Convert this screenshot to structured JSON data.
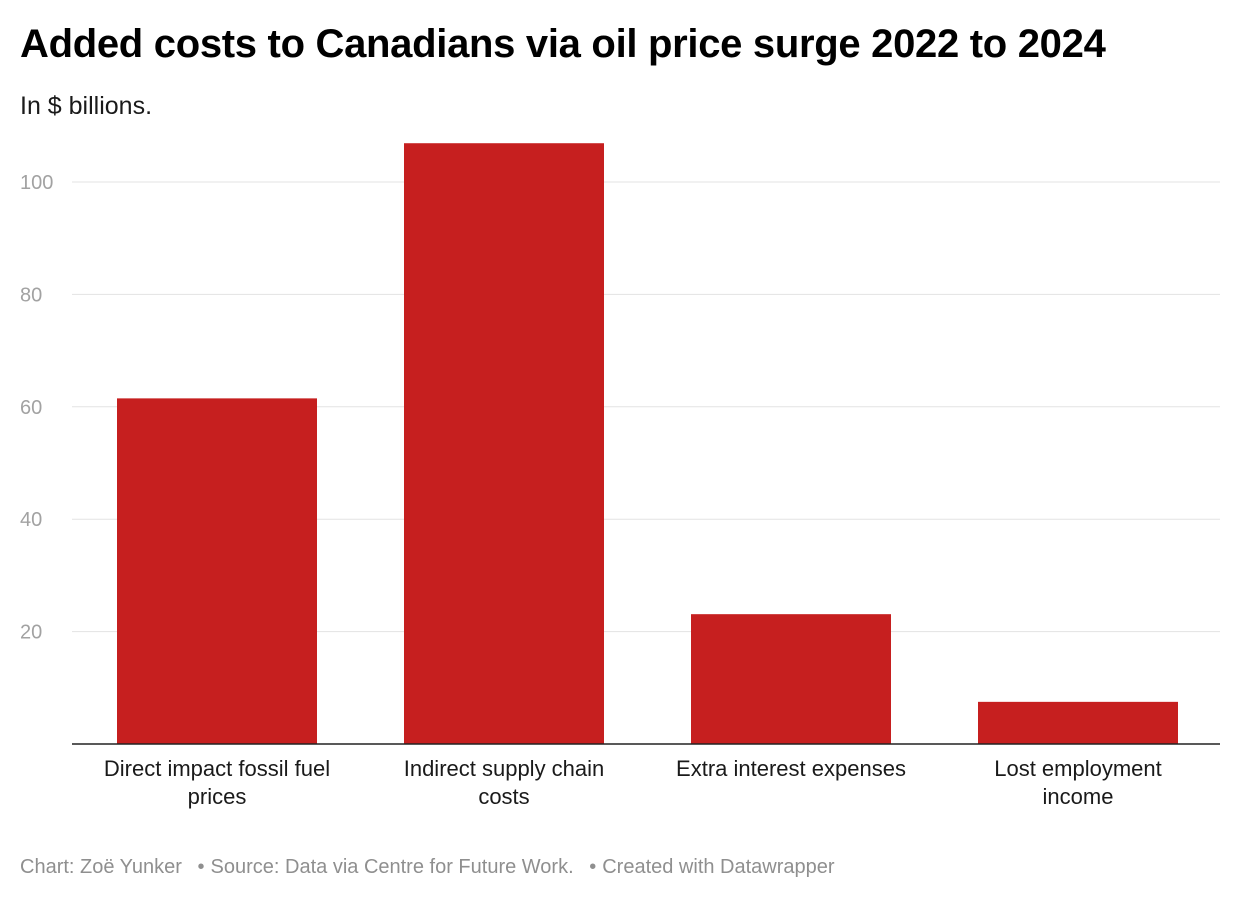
{
  "colors": {
    "bar": "#c61f1f",
    "grid": "#e3e3e3",
    "axis": "#222222"
  },
  "chart_data": {
    "type": "bar",
    "title": "Added costs to Canadians via oil price surge 2022 to 2024",
    "subtitle": "In $ billions.",
    "categories": [
      [
        "Direct impact fossil fuel",
        "prices"
      ],
      [
        "Indirect supply chain",
        "costs"
      ],
      [
        "Extra interest expenses"
      ],
      [
        "Lost employment",
        "income"
      ]
    ],
    "values": [
      61.5,
      106.9,
      23.1,
      7.5
    ],
    "xlabel": "",
    "ylabel": "",
    "ylim": [
      0,
      110
    ],
    "yticks": [
      20,
      40,
      60,
      80,
      100
    ],
    "grid": true
  },
  "footer": {
    "credit": "Chart: Zoë Yunker",
    "source": "Source: Data via Centre for Future Work.",
    "tool": "Created with Datawrapper",
    "separator": "•"
  }
}
